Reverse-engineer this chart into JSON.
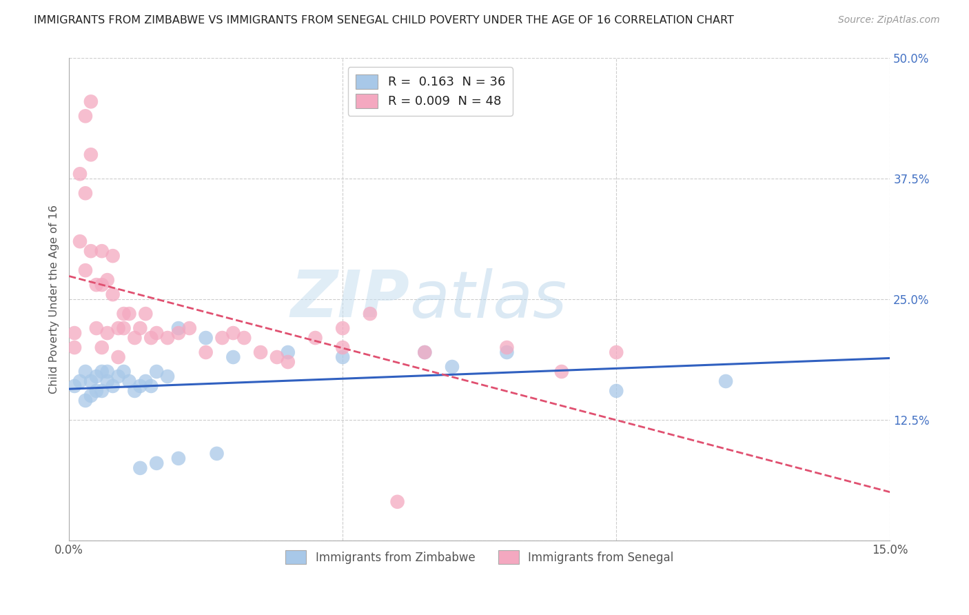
{
  "title": "IMMIGRANTS FROM ZIMBABWE VS IMMIGRANTS FROM SENEGAL CHILD POVERTY UNDER THE AGE OF 16 CORRELATION CHART",
  "source": "Source: ZipAtlas.com",
  "ylabel": "Child Poverty Under the Age of 16",
  "xlim": [
    0,
    0.15
  ],
  "ylim": [
    0,
    0.5
  ],
  "r_zimbabwe": 0.163,
  "n_zimbabwe": 36,
  "r_senegal": 0.009,
  "n_senegal": 48,
  "zimbabwe_color": "#a8c8e8",
  "senegal_color": "#f4a8c0",
  "zimbabwe_line_color": "#3060c0",
  "senegal_line_color": "#e05070",
  "watermark_zip": "ZIP",
  "watermark_atlas": "atlas",
  "zimbabwe_x": [
    0.001,
    0.002,
    0.003,
    0.003,
    0.004,
    0.004,
    0.005,
    0.005,
    0.006,
    0.006,
    0.007,
    0.007,
    0.008,
    0.009,
    0.01,
    0.011,
    0.012,
    0.013,
    0.014,
    0.015,
    0.016,
    0.018,
    0.02,
    0.025,
    0.03,
    0.04,
    0.05,
    0.065,
    0.07,
    0.08,
    0.1,
    0.12,
    0.013,
    0.016,
    0.02,
    0.027
  ],
  "zimbabwe_y": [
    0.16,
    0.165,
    0.145,
    0.175,
    0.15,
    0.165,
    0.155,
    0.17,
    0.175,
    0.155,
    0.165,
    0.175,
    0.16,
    0.17,
    0.175,
    0.165,
    0.155,
    0.16,
    0.165,
    0.16,
    0.175,
    0.17,
    0.22,
    0.21,
    0.19,
    0.195,
    0.19,
    0.195,
    0.18,
    0.195,
    0.155,
    0.165,
    0.075,
    0.08,
    0.085,
    0.09
  ],
  "senegal_x": [
    0.001,
    0.001,
    0.002,
    0.002,
    0.003,
    0.003,
    0.003,
    0.004,
    0.004,
    0.004,
    0.005,
    0.005,
    0.006,
    0.006,
    0.006,
    0.007,
    0.007,
    0.008,
    0.008,
    0.009,
    0.009,
    0.01,
    0.01,
    0.011,
    0.012,
    0.013,
    0.014,
    0.015,
    0.016,
    0.018,
    0.02,
    0.022,
    0.025,
    0.028,
    0.03,
    0.032,
    0.035,
    0.038,
    0.04,
    0.045,
    0.05,
    0.055,
    0.065,
    0.08,
    0.09,
    0.1,
    0.05,
    0.06
  ],
  "senegal_y": [
    0.2,
    0.215,
    0.38,
    0.31,
    0.44,
    0.36,
    0.28,
    0.455,
    0.4,
    0.3,
    0.265,
    0.22,
    0.3,
    0.265,
    0.2,
    0.27,
    0.215,
    0.295,
    0.255,
    0.22,
    0.19,
    0.235,
    0.22,
    0.235,
    0.21,
    0.22,
    0.235,
    0.21,
    0.215,
    0.21,
    0.215,
    0.22,
    0.195,
    0.21,
    0.215,
    0.21,
    0.195,
    0.19,
    0.185,
    0.21,
    0.2,
    0.235,
    0.195,
    0.2,
    0.175,
    0.195,
    0.22,
    0.04
  ]
}
